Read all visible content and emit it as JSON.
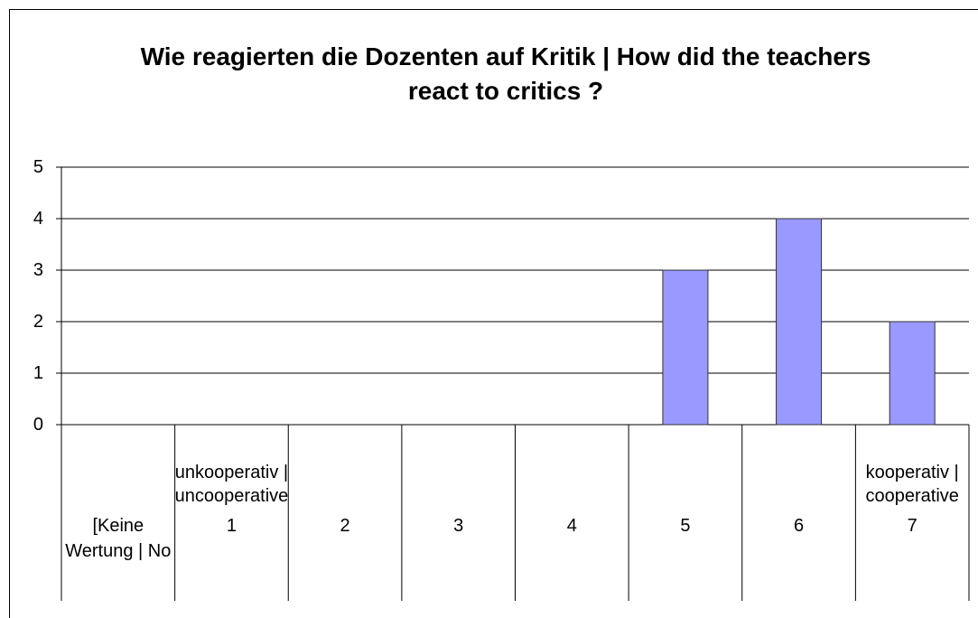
{
  "chart_data": {
    "type": "bar",
    "title": "Wie reagierten die Dozenten auf Kritik | How did the teachers react to critics ?",
    "categories": [
      "[Keine Wertung | No",
      "1",
      "2",
      "3",
      "4",
      "5",
      "6",
      "7"
    ],
    "category_sublabels": [
      null,
      "unkooperativ | uncooperative",
      null,
      null,
      null,
      null,
      null,
      "kooperativ | cooperative"
    ],
    "values": [
      0,
      0,
      0,
      0,
      0,
      3,
      4,
      2
    ],
    "color": "#9999ff",
    "ylim": [
      0,
      5
    ],
    "yticks": [
      0,
      1,
      2,
      3,
      4,
      5
    ],
    "grid": true
  }
}
